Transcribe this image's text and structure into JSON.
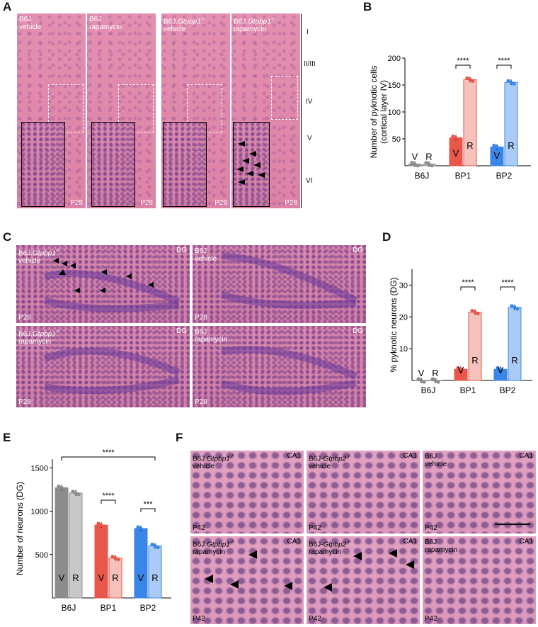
{
  "panels": {
    "A": "A",
    "B": "B",
    "C": "C",
    "D": "D",
    "E": "E",
    "F": "F"
  },
  "panel_a": {
    "images": [
      {
        "line1": "B6J",
        "gene": "",
        "line2": "vehicle",
        "age": "P28"
      },
      {
        "line1": "B6J",
        "gene": "",
        "line2": "rapamycin",
        "age": "P28"
      },
      {
        "line1": "B6J.",
        "gene": "Gtpbp1",
        "sup": "-/-",
        "line2": "vehicle",
        "age": "P28"
      },
      {
        "line1": "B6J.",
        "gene": "Gtpbp1",
        "sup": "-/-",
        "line2": "rapamycin",
        "age": "P28"
      }
    ],
    "layers": [
      "I",
      "II/III",
      "IV",
      "V",
      "VI"
    ]
  },
  "panel_c": {
    "images": [
      {
        "line1": "B6J.",
        "gene": "Gtpbp1",
        "sup": "-/-",
        "line2": "vehicle",
        "region": "DG",
        "age": "P28"
      },
      {
        "line1": "B6J",
        "gene": "",
        "sup": "",
        "line2": "vehicle",
        "region": "DG",
        "age": "P28"
      },
      {
        "line1": "B6J.",
        "gene": "Gtpbp1",
        "sup": "-/-",
        "line2": "rapamycin",
        "region": "DG",
        "age": "P28"
      },
      {
        "line1": "B6J",
        "gene": "",
        "sup": "",
        "line2": "rapamycin",
        "region": "DG",
        "age": "P28"
      }
    ]
  },
  "panel_f": {
    "images": [
      {
        "line1": "B6J.",
        "gene": "Gtpbp1",
        "sup": "-/-",
        "line2": "vehicle",
        "region": "CA1",
        "age": "P42"
      },
      {
        "line1": "B6J-",
        "gene": "Gtpbp2",
        "sup": "-/-",
        "line2": "vehicle",
        "region": "CA1",
        "age": "P42"
      },
      {
        "line1": "B6J",
        "gene": "",
        "sup": "",
        "line2": "vehicle",
        "region": "CA1",
        "age": "P42"
      },
      {
        "line1": "B6J.",
        "gene": "Gtpbp1",
        "sup": "-/-",
        "line2": "rapamycin",
        "region": "CA1",
        "age": "P42"
      },
      {
        "line1": "B6J-",
        "gene": "Gtpbp2",
        "sup": "-/-",
        "line2": "rapamycin",
        "region": "CA1",
        "age": "P42"
      },
      {
        "line1": "B6J",
        "gene": "",
        "sup": "",
        "line2": "rapamycin",
        "region": "CA1",
        "age": "P42"
      }
    ]
  },
  "colors": {
    "red": "#e8574a",
    "red_light": "#f4c2bb",
    "blue": "#3a86e8",
    "blue_light": "#a9cbf5",
    "grey": "#8c8c8c",
    "grey_light": "#c8c8c8"
  },
  "chart_data": [
    {
      "panel": "B",
      "type": "bar",
      "ylabel": "Number of pyknotic cells\n(cortical layer IV)",
      "ylim": [
        0,
        200
      ],
      "yticks": [
        50,
        100,
        150,
        200
      ],
      "groups": [
        "B6J",
        "BP1",
        "BP2"
      ],
      "bar_labels": [
        "V",
        "R",
        "V",
        "R",
        "V",
        "R"
      ],
      "values": [
        3,
        3,
        52,
        160,
        35,
        155
      ],
      "significance": [
        "****",
        "****"
      ]
    },
    {
      "panel": "D",
      "type": "bar",
      "ylabel": "% pyknotic neurons (DG)",
      "ylim": [
        0,
        35
      ],
      "yticks": [
        10,
        20,
        30
      ],
      "groups": [
        "B6J",
        "BP1",
        "BP2"
      ],
      "bar_labels": [
        "V",
        "R",
        "V",
        "R",
        "V",
        "R"
      ],
      "values": [
        0,
        0,
        3.5,
        21.5,
        3.5,
        23
      ],
      "significance": [
        "****",
        "****"
      ]
    },
    {
      "panel": "E",
      "type": "bar",
      "ylabel": "Number of neurons (DG)",
      "ylim": [
        0,
        1600
      ],
      "yticks": [
        500,
        1000,
        1500
      ],
      "groups": [
        "B6J",
        "BP1",
        "BP2"
      ],
      "bar_labels": [
        "V",
        "R",
        "V",
        "R",
        "V",
        "R"
      ],
      "values": [
        1270,
        1210,
        840,
        460,
        800,
        600
      ],
      "significance": [
        "****",
        "****",
        "***"
      ]
    }
  ]
}
